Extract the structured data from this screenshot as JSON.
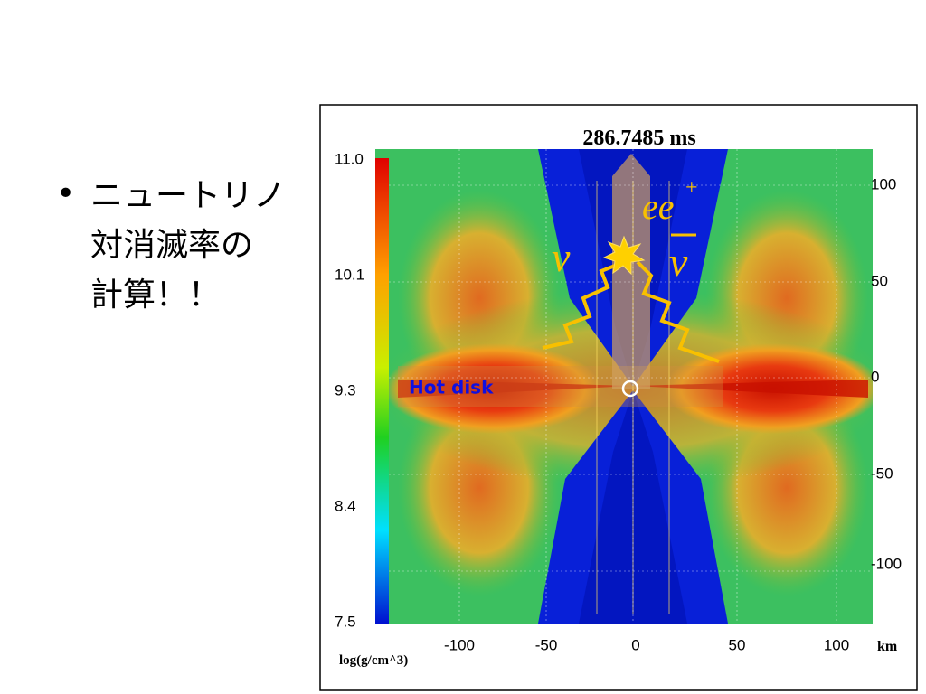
{
  "slide": {
    "bullet": {
      "lines": [
        "ニュートリノ",
        "対消滅率の",
        "計算！！"
      ]
    }
  },
  "figure": {
    "time": "286.7485 ms",
    "colorbar": {
      "ticks": [
        "11.0",
        "10.1",
        "9.3",
        "8.4",
        "7.5"
      ],
      "label": "log(g/cm^3)"
    },
    "x_ticks": [
      "-100",
      "-50",
      "0",
      "50",
      "100"
    ],
    "x_unit": "km",
    "y_ticks": [
      "100",
      "50",
      "0",
      "-50",
      "-100"
    ],
    "annotations": {
      "disk": "Hot disk",
      "pair": "ee",
      "pair_sup": "+",
      "nu": "ν",
      "nubar": "ν"
    }
  }
}
